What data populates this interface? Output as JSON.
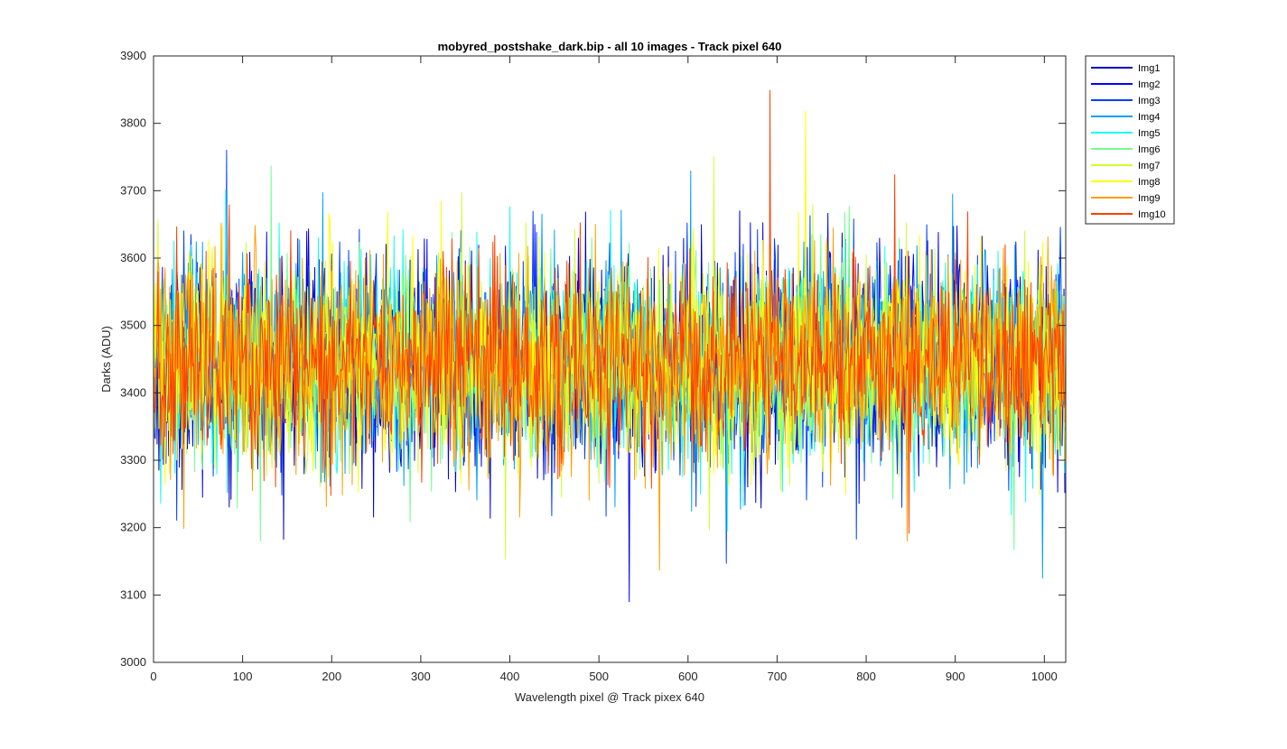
{
  "chart_data": {
    "type": "line",
    "title": "mobyred_postshake_dark.bip - all 10 images  - Track pixel 640",
    "xlabel": "Wavelength pixel @ Track pixex 640",
    "ylabel": "Darks (ADU)",
    "xlim": [
      0,
      1024
    ],
    "ylim": [
      3000,
      3900
    ],
    "xticks": [
      0,
      100,
      200,
      300,
      400,
      500,
      600,
      700,
      800,
      900,
      1000
    ],
    "yticks": [
      3000,
      3100,
      3200,
      3300,
      3400,
      3500,
      3600,
      3700,
      3800,
      3900
    ],
    "grid": false,
    "legend_position": "outside-top-right",
    "n_points_per_series": 1024,
    "series": [
      {
        "name": "Img1",
        "color": "#0000bf",
        "mean": 3445,
        "std": 75
      },
      {
        "name": "Img2",
        "color": "#0000ff",
        "mean": 3445,
        "std": 75
      },
      {
        "name": "Img3",
        "color": "#0040ff",
        "mean": 3445,
        "std": 75
      },
      {
        "name": "Img4",
        "color": "#00a0ff",
        "mean": 3445,
        "std": 75
      },
      {
        "name": "Img5",
        "color": "#10ffef",
        "mean": 3445,
        "std": 75
      },
      {
        "name": "Img6",
        "color": "#70ff8f",
        "mean": 3445,
        "std": 75
      },
      {
        "name": "Img7",
        "color": "#cfff30",
        "mean": 3445,
        "std": 75
      },
      {
        "name": "Img8",
        "color": "#ffff00",
        "mean": 3445,
        "std": 75
      },
      {
        "name": "Img9",
        "color": "#ff9f00",
        "mean": 3445,
        "std": 75
      },
      {
        "name": "Img10",
        "color": "#ff4000",
        "mean": 3445,
        "std": 75
      }
    ],
    "annotations": [
      {
        "series": "Img10",
        "x": 692,
        "y": 3849
      },
      {
        "series": "Img8",
        "x": 732,
        "y": 3818
      },
      {
        "series": "Img2",
        "x": 534,
        "y": 3090
      },
      {
        "series": "Img4",
        "x": 998,
        "y": 3125
      }
    ]
  }
}
